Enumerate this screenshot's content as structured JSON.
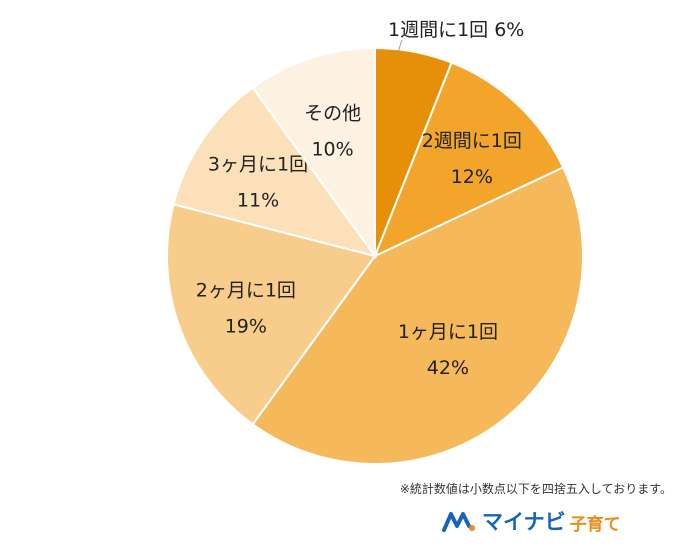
{
  "chart_data": {
    "type": "pie",
    "slices": [
      {
        "label": "1週間に1回",
        "value": 6,
        "value_text": "6%",
        "color": "#e6900a"
      },
      {
        "label": "2週間に1回",
        "value": 12,
        "value_text": "12%",
        "color": "#f2a52a"
      },
      {
        "label": "1ヶ月に1回",
        "value": 42,
        "value_text": "42%",
        "color": "#f5b85a"
      },
      {
        "label": "2ヶ月に1回",
        "value": 19,
        "value_text": "19%",
        "color": "#f8cd8c"
      },
      {
        "label": "3ヶ月に1回",
        "value": 11,
        "value_text": "11%",
        "color": "#fbe0ba"
      },
      {
        "label": "その他",
        "value": 10,
        "value_text": "10%",
        "color": "#fdf2e2"
      }
    ],
    "start": "top",
    "direction": "clockwise",
    "legend": "none"
  },
  "footnote": "※統計数値は小数点以下を四捨五入しております。",
  "logo": {
    "main": "マイナビ",
    "sub": "子育て"
  }
}
